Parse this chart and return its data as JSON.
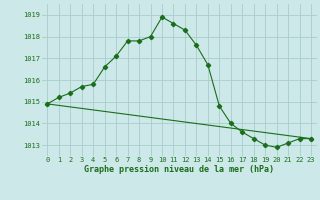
{
  "title": "Graphe pression niveau de la mer (hPa)",
  "bg_color": "#cce8e8",
  "grid_color": "#aacccc",
  "line_color": "#1a6e1a",
  "marker_color": "#1a6e1a",
  "xlim": [
    -0.5,
    23.5
  ],
  "ylim": [
    1012.5,
    1019.5
  ],
  "yticks": [
    1013,
    1014,
    1015,
    1016,
    1017,
    1018,
    1019
  ],
  "xticks": [
    0,
    1,
    2,
    3,
    4,
    5,
    6,
    7,
    8,
    9,
    10,
    11,
    12,
    13,
    14,
    15,
    16,
    17,
    18,
    19,
    20,
    21,
    22,
    23
  ],
  "line1_x": [
    0,
    1,
    2,
    3,
    4,
    5,
    6,
    7,
    8,
    9,
    10,
    11,
    12,
    13,
    14,
    15,
    16,
    17,
    18,
    19,
    20,
    21,
    22,
    23
  ],
  "line1_y": [
    1014.9,
    1015.2,
    1015.4,
    1015.7,
    1015.8,
    1016.6,
    1017.1,
    1017.8,
    1017.8,
    1018.0,
    1018.9,
    1018.6,
    1018.3,
    1017.6,
    1016.7,
    1014.8,
    1014.0,
    1013.6,
    1013.3,
    1013.0,
    1012.9,
    1013.1,
    1013.3,
    1013.3
  ],
  "line2_x": [
    0,
    23
  ],
  "line2_y": [
    1014.9,
    1013.3
  ]
}
